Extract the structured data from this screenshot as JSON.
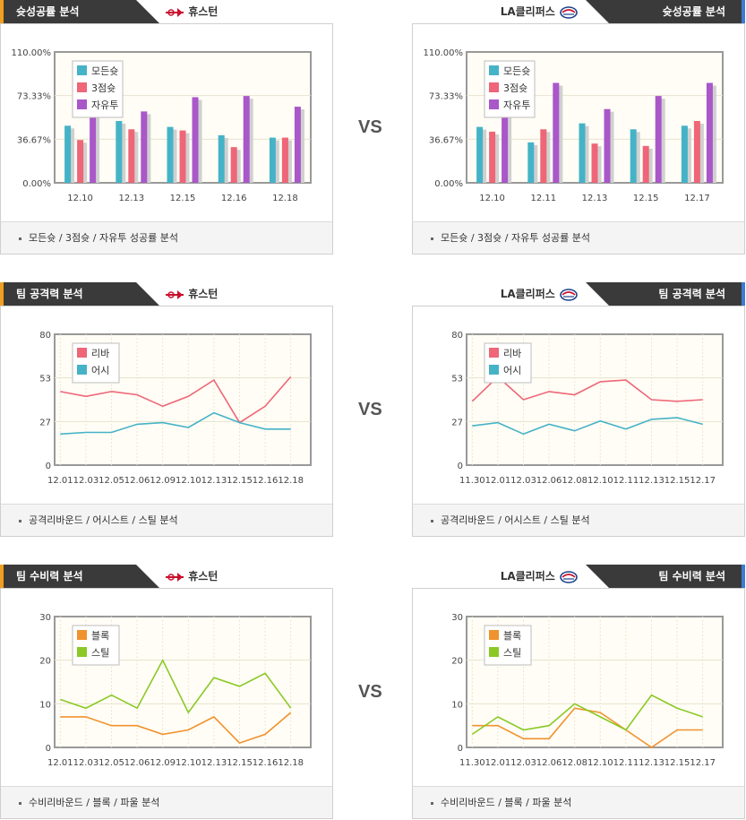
{
  "vs_label": "VS",
  "colors": {
    "all": "#45b3c7",
    "three": "#ee6677",
    "ft": "#a957c9",
    "reb": "#ee6677",
    "ast": "#45b3c7",
    "blk": "#f0922e",
    "stl": "#8ac926",
    "plot_bg": "#fffdf5",
    "frame": "#999999"
  },
  "panels": [
    {
      "side": "left",
      "title": "슛성공률 분석",
      "team": "휴스턴",
      "logo": "rockets-logo-icon",
      "footer": "모든슛 / 3점슛 / 자유투 성공률 분석",
      "chart_data": {
        "type": "bar",
        "categories": [
          "12.10",
          "12.13",
          "12.15",
          "12.16",
          "12.18"
        ],
        "ylim": [
          0,
          110
        ],
        "yticks": [
          "0.00%",
          "36.67%",
          "73.33%",
          "110.00%"
        ],
        "series": [
          {
            "name": "모든슛",
            "color_key": "all",
            "values": [
              48,
              52,
              47,
              40,
              38
            ]
          },
          {
            "name": "3점슛",
            "color_key": "three",
            "values": [
              36,
              45,
              44,
              30,
              38
            ]
          },
          {
            "name": "자유투",
            "color_key": "ft",
            "values": [
              78,
              60,
              72,
              73,
              64
            ]
          }
        ]
      }
    },
    {
      "side": "right",
      "title": "슛성공률 분석",
      "team": "LA클리퍼스",
      "logo": "clippers-logo-icon",
      "footer": "모든슛 / 3점슛 / 자유투 성공률 분석",
      "chart_data": {
        "type": "bar",
        "categories": [
          "12.10",
          "12.11",
          "12.13",
          "12.15",
          "12.17"
        ],
        "ylim": [
          0,
          110
        ],
        "yticks": [
          "0.00%",
          "36.67%",
          "73.33%",
          "110.00%"
        ],
        "series": [
          {
            "name": "모든슛",
            "color_key": "all",
            "values": [
              47,
              34,
              50,
              45,
              48
            ]
          },
          {
            "name": "3점슛",
            "color_key": "three",
            "values": [
              43,
              45,
              33,
              31,
              52
            ]
          },
          {
            "name": "자유투",
            "color_key": "ft",
            "values": [
              80,
              84,
              62,
              73,
              84
            ]
          }
        ]
      }
    },
    {
      "side": "left",
      "title": "팀 공격력 분석",
      "team": "휴스턴",
      "logo": "rockets-logo-icon",
      "footer": "공격리바운드 / 어시스트 / 스틸 분석",
      "chart_data": {
        "type": "line",
        "x": [
          "12.01",
          "12.03",
          "12.05",
          "12.06",
          "12.09",
          "12.10",
          "12.13",
          "12.15",
          "12.16",
          "12.18"
        ],
        "ylim": [
          0,
          80
        ],
        "yticks": [
          "0",
          "27",
          "53",
          "80"
        ],
        "series": [
          {
            "name": "리바",
            "color_key": "reb",
            "values": [
              45,
              42,
              45,
              43,
              36,
              42,
              52,
              26,
              36,
              54
            ]
          },
          {
            "name": "어시",
            "color_key": "ast",
            "values": [
              19,
              20,
              20,
              25,
              26,
              23,
              32,
              26,
              22,
              22
            ]
          }
        ]
      }
    },
    {
      "side": "right",
      "title": "팀 공격력 분석",
      "team": "LA클리퍼스",
      "logo": "clippers-logo-icon",
      "footer": "공격리바운드 / 어시스트 / 스틸 분석",
      "chart_data": {
        "type": "line",
        "x": [
          "11.30",
          "12.01",
          "12.03",
          "12.06",
          "12.08",
          "12.10",
          "12.11",
          "12.13",
          "12.15",
          "12.17"
        ],
        "ylim": [
          0,
          80
        ],
        "yticks": [
          "0",
          "27",
          "53",
          "80"
        ],
        "series": [
          {
            "name": "리바",
            "color_key": "reb",
            "values": [
              39,
              54,
              40,
              45,
              43,
              51,
              52,
              40,
              39,
              40
            ]
          },
          {
            "name": "어시",
            "color_key": "ast",
            "values": [
              24,
              26,
              19,
              25,
              21,
              27,
              22,
              28,
              29,
              25
            ]
          }
        ]
      }
    },
    {
      "side": "left",
      "title": "팀 수비력 분석",
      "team": "휴스턴",
      "logo": "rockets-logo-icon",
      "footer": "수비리바운드 / 블록 / 파울 분석",
      "chart_data": {
        "type": "line",
        "x": [
          "12.01",
          "12.03",
          "12.05",
          "12.06",
          "12.09",
          "12.10",
          "12.13",
          "12.15",
          "12.16",
          "12.18"
        ],
        "ylim": [
          0,
          30
        ],
        "yticks": [
          "0",
          "10",
          "20",
          "30"
        ],
        "series": [
          {
            "name": "블록",
            "color_key": "blk",
            "values": [
              7,
              7,
              5,
              5,
              3,
              4,
              7,
              1,
              3,
              8
            ]
          },
          {
            "name": "스틸",
            "color_key": "stl",
            "values": [
              11,
              9,
              12,
              9,
              20,
              8,
              16,
              14,
              17,
              9
            ]
          }
        ]
      }
    },
    {
      "side": "right",
      "title": "팀 수비력 분석",
      "team": "LA클리퍼스",
      "logo": "clippers-logo-icon",
      "footer": "수비리바운드 / 블록 / 파울 분석",
      "chart_data": {
        "type": "line",
        "x": [
          "11.30",
          "12.01",
          "12.03",
          "12.06",
          "12.08",
          "12.10",
          "12.11",
          "12.13",
          "12.15",
          "12.17"
        ],
        "ylim": [
          0,
          30
        ],
        "yticks": [
          "0",
          "10",
          "20",
          "30"
        ],
        "series": [
          {
            "name": "블록",
            "color_key": "blk",
            "values": [
              5,
              5,
              2,
              2,
              9,
              8,
              4,
              0,
              4,
              4
            ]
          },
          {
            "name": "스틸",
            "color_key": "stl",
            "values": [
              3,
              7,
              4,
              5,
              10,
              7,
              4,
              12,
              9,
              7
            ]
          }
        ]
      }
    }
  ]
}
